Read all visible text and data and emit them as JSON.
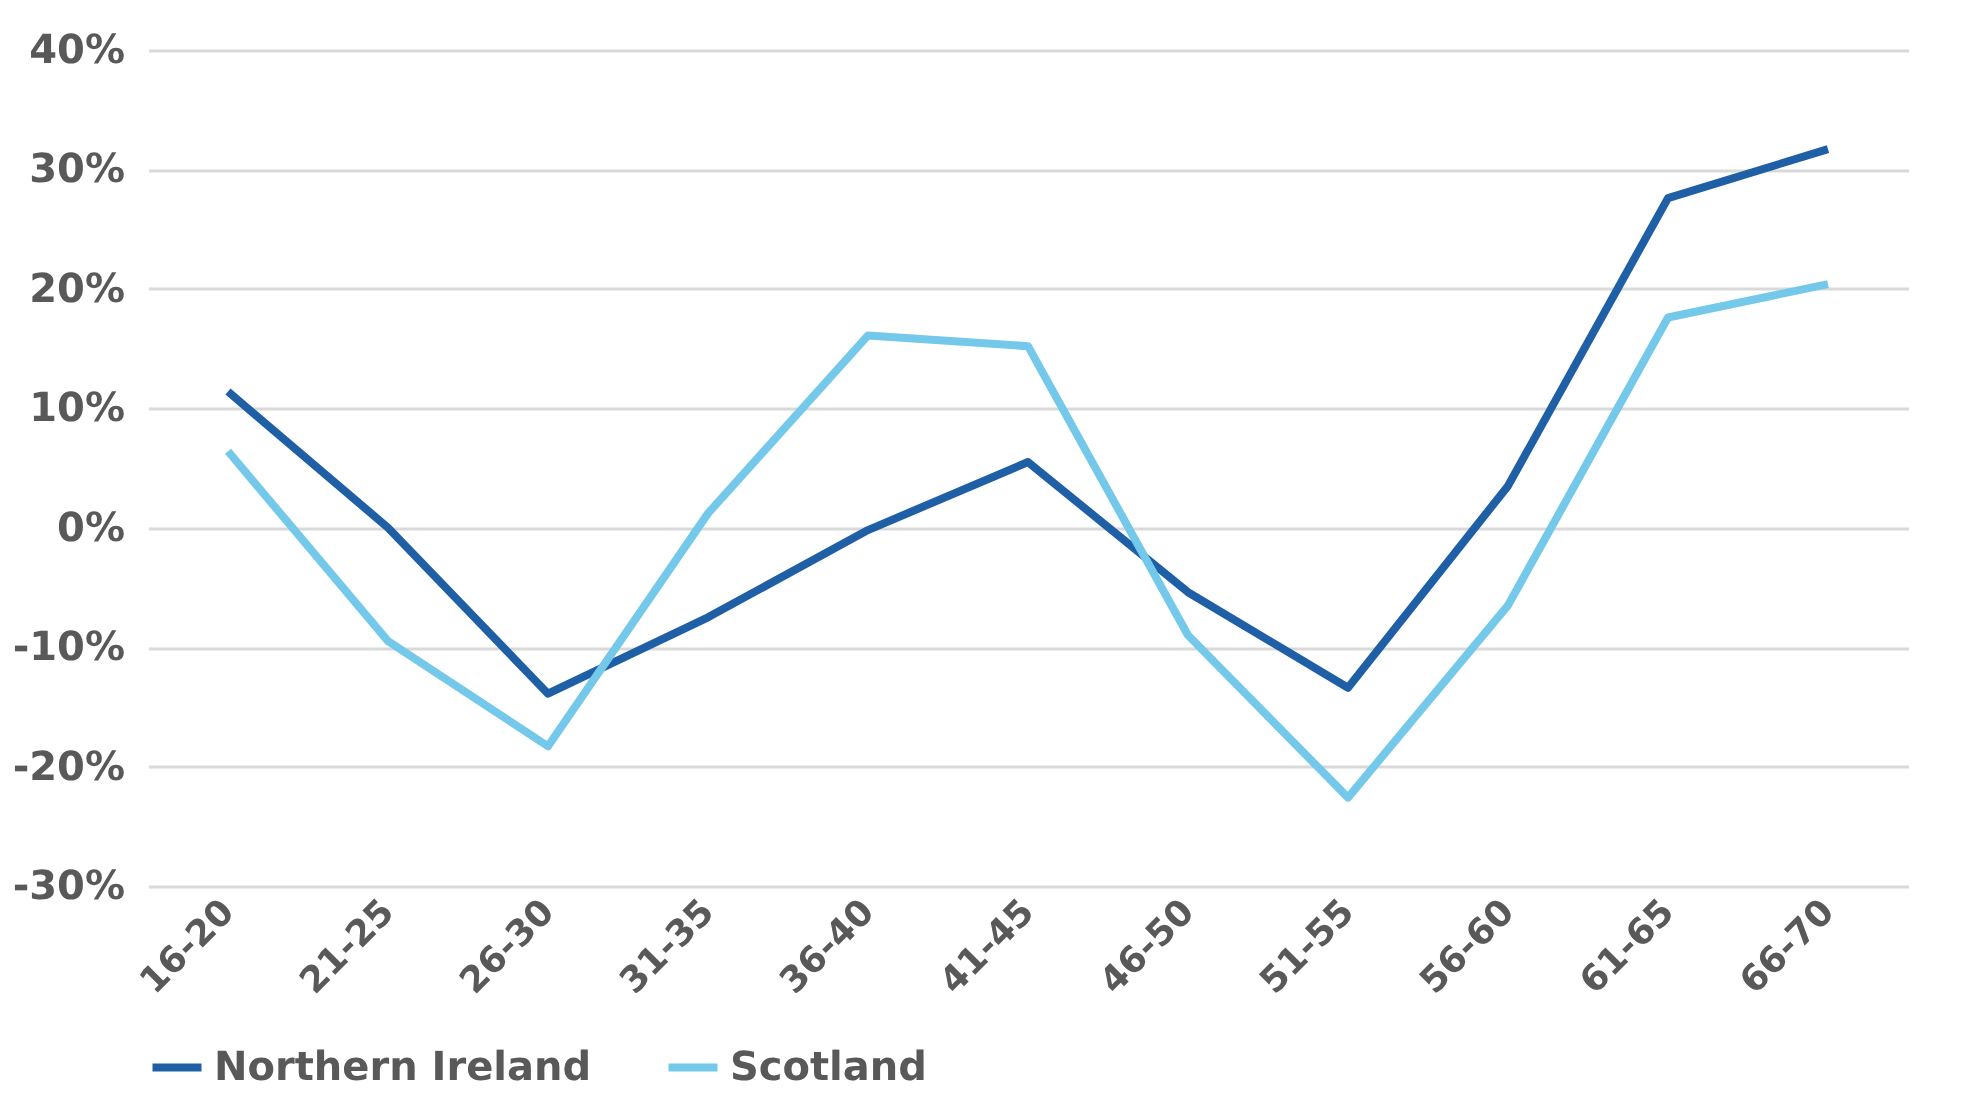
{
  "chart_data": {
    "type": "line",
    "categories": [
      "16-20",
      "21-25",
      "26-30",
      "31-35",
      "36-40",
      "41-45",
      "46-50",
      "51-55",
      "56-60",
      "61-65",
      "66-70"
    ],
    "series": [
      {
        "name": "Northern Ireland",
        "color": "#1f5fa6",
        "values": [
          11.4,
          0,
          -13.9,
          -7.5,
          -0.2,
          5.5,
          -5.4,
          -13.4,
          3.5,
          27.6,
          31.7
        ]
      },
      {
        "name": "Scotland",
        "color": "#74c9ea",
        "values": [
          6.4,
          -9.5,
          -18.3,
          1.2,
          16.1,
          15.2,
          -9.0,
          -22.6,
          -6.5,
          17.6,
          20.4
        ]
      }
    ],
    "ylim": [
      -30,
      40
    ],
    "yticks": [
      {
        "value": -30,
        "label": "-30%"
      },
      {
        "value": -20,
        "label": "-20%"
      },
      {
        "value": -10,
        "label": "-10%"
      },
      {
        "value": 0,
        "label": "0%"
      },
      {
        "value": 10,
        "label": "10%"
      },
      {
        "value": 20,
        "label": "20%"
      },
      {
        "value": 30,
        "label": "30%"
      },
      {
        "value": 40,
        "label": "40%"
      }
    ],
    "grid": "y",
    "legend": "bottom",
    "marker": "none",
    "line_style": "solid"
  }
}
